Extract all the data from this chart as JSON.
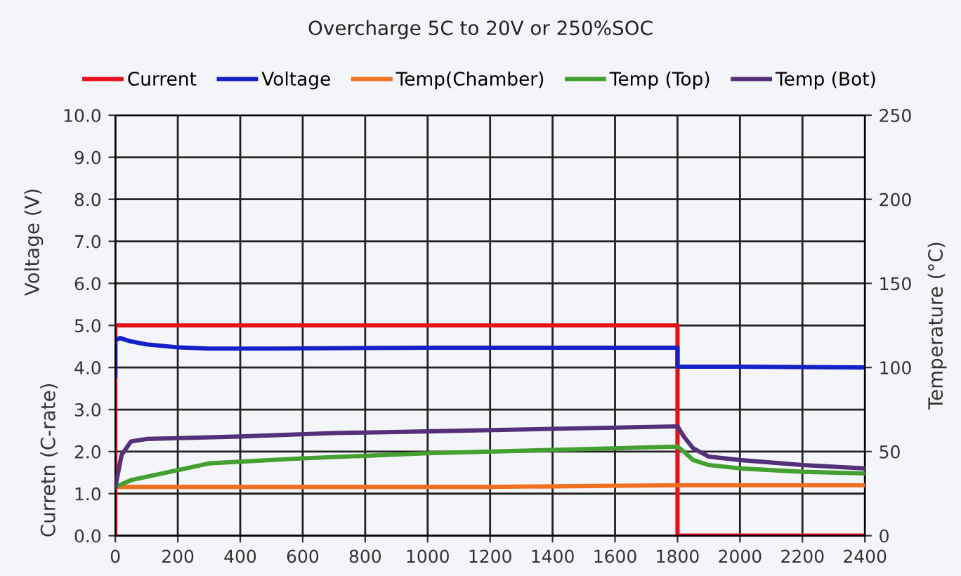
{
  "chart_data": {
    "type": "line",
    "title": "Overcharge 5C to 20V or 250%SOC",
    "ylabel": "Curretn (C-rate)",
    "y2label": "Temperature (°C)",
    "annotations": [
      "Voltage (V)"
    ],
    "series": [
      {
        "name": "Current",
        "color": "#e8101a",
        "x": [
          0,
          0,
          1800,
          1800,
          2400
        ],
        "values": [
          0,
          5,
          5,
          0,
          0
        ]
      },
      {
        "name": "Voltage",
        "color": "#1420c8",
        "x": [
          0,
          0,
          15,
          50,
          100,
          200,
          300,
          500,
          1000,
          1500,
          1800,
          1800,
          2000,
          2400
        ],
        "values": [
          3.8,
          4.65,
          4.7,
          4.62,
          4.55,
          4.48,
          4.45,
          4.45,
          4.47,
          4.47,
          4.47,
          4.02,
          4.02,
          4.0
        ]
      },
      {
        "name": "Temp(Chamber)",
        "color": "#f07020",
        "axis": "y2",
        "x": [
          0,
          600,
          1200,
          1800,
          2400
        ],
        "values": [
          29,
          29,
          29,
          30,
          30
        ]
      },
      {
        "name": "Temp (Top)",
        "color": "#44a030",
        "axis": "y2",
        "x": [
          0,
          50,
          100,
          200,
          300,
          600,
          1000,
          1400,
          1800,
          1820,
          1850,
          1900,
          2000,
          2200,
          2400
        ],
        "values": [
          29,
          33,
          35,
          39,
          43,
          46,
          49,
          51,
          53,
          50,
          45,
          42,
          40,
          38,
          37
        ]
      },
      {
        "name": "Temp (Bot)",
        "color": "#55307a",
        "axis": "y2",
        "x": [
          0,
          20,
          50,
          100,
          200,
          400,
          700,
          1000,
          1400,
          1800,
          1820,
          1850,
          1900,
          2000,
          2200,
          2400
        ],
        "values": [
          29,
          48,
          56,
          57.5,
          58,
          59,
          61,
          62,
          63.5,
          65,
          59,
          52,
          47,
          45,
          42,
          40
        ]
      }
    ],
    "xlim": [
      0,
      2400
    ],
    "xticks": [
      0,
      200,
      400,
      600,
      800,
      1000,
      1200,
      1400,
      1600,
      1800,
      2000,
      2200,
      2400
    ],
    "ylim": [
      0,
      10
    ],
    "yticks": [
      {
        "value": 0,
        "label": "0.0"
      },
      {
        "value": 1,
        "label": "1.0"
      },
      {
        "value": 2,
        "label": "2.0"
      },
      {
        "value": 3,
        "label": "3.0"
      },
      {
        "value": 4,
        "label": "4.0"
      },
      {
        "value": 5,
        "label": "5.0"
      },
      {
        "value": 6,
        "label": "6.0"
      },
      {
        "value": 7,
        "label": "7.0"
      },
      {
        "value": 8,
        "label": "8.0"
      },
      {
        "value": 9,
        "label": "9.0"
      },
      {
        "value": 10,
        "label": "10.0"
      }
    ],
    "y2lim": [
      0,
      250
    ],
    "y2ticks": [
      0,
      50,
      100,
      150,
      200,
      250
    ],
    "grid": true,
    "legend": "top",
    "marker": "none",
    "line_style": "solid"
  }
}
